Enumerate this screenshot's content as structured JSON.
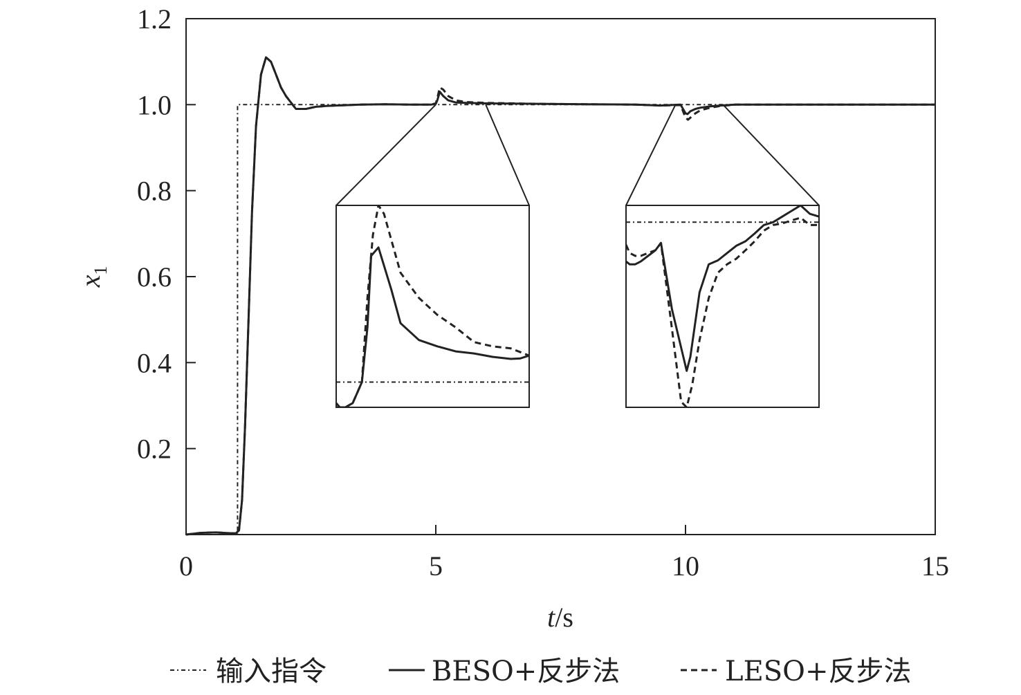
{
  "chart_data": {
    "type": "line",
    "title": "",
    "xlabel_italic": "t",
    "xlabel_unit": "/s",
    "ylabel_main": "x",
    "ylabel_sub": "1",
    "xlim": [
      0,
      15
    ],
    "ylim": [
      0,
      1.2
    ],
    "x_ticks": [
      0,
      5,
      10,
      15
    ],
    "x_tick_labels": [
      "0",
      "5",
      "10",
      "15"
    ],
    "y_ticks": [
      0.2,
      0.4,
      0.6,
      0.8,
      1.0,
      1.2
    ],
    "y_tick_labels": [
      "0.2",
      "0.4",
      "0.6",
      "0.8",
      "1.0",
      "1.2"
    ],
    "grid": false,
    "legend_position": "bottom",
    "series": [
      {
        "name": "输入指令",
        "style": "dashdot",
        "x": [
          0,
          1.03,
          1.03,
          15
        ],
        "y": [
          0,
          0,
          1.0,
          1.0
        ]
      },
      {
        "name": "BESO+反步法",
        "style": "solid",
        "x": [
          0,
          0.3,
          0.6,
          0.9,
          1.0,
          1.06,
          1.12,
          1.18,
          1.25,
          1.32,
          1.4,
          1.5,
          1.6,
          1.7,
          1.8,
          1.9,
          2.0,
          2.2,
          2.4,
          2.6,
          2.8,
          3.0,
          3.5,
          4.0,
          4.5,
          4.9,
          5.0,
          5.03,
          5.08,
          5.15,
          5.25,
          5.4,
          5.6,
          6.0,
          7.0,
          8.0,
          9.0,
          9.5,
          9.9,
          9.95,
          10.0,
          10.04,
          10.1,
          10.2,
          10.3,
          10.5,
          10.7,
          11.0,
          12.0,
          13.0,
          14.0,
          15.0
        ],
        "y": [
          0.0,
          0.004,
          0.005,
          0.003,
          0.003,
          0.01,
          0.08,
          0.25,
          0.5,
          0.75,
          0.95,
          1.07,
          1.11,
          1.1,
          1.07,
          1.04,
          1.02,
          0.99,
          0.99,
          0.995,
          0.997,
          0.998,
          1.0,
          1.001,
          1.0,
          1.0,
          1.002,
          1.01,
          1.03,
          1.02,
          1.01,
          1.005,
          1.004,
          1.003,
          1.002,
          1.001,
          1.0,
          0.998,
          1.0,
          0.99,
          0.98,
          0.978,
          0.985,
          0.99,
          0.993,
          0.996,
          0.998,
          1.0,
          1.0,
          1.0,
          1.0,
          1.0
        ]
      },
      {
        "name": "LESO+反步法",
        "style": "dashed",
        "x": [
          0,
          0.3,
          0.6,
          0.9,
          1.0,
          1.06,
          1.12,
          1.18,
          1.25,
          1.32,
          1.4,
          1.5,
          1.6,
          1.7,
          1.8,
          1.9,
          2.0,
          2.2,
          2.4,
          2.6,
          2.8,
          3.0,
          3.5,
          4.0,
          4.5,
          4.9,
          5.0,
          5.03,
          5.08,
          5.15,
          5.25,
          5.4,
          5.6,
          6.0,
          7.0,
          8.0,
          9.0,
          9.5,
          9.9,
          9.95,
          10.0,
          10.05,
          10.12,
          10.2,
          10.3,
          10.5,
          10.7,
          11.0,
          12.0,
          13.0,
          14.0,
          15.0
        ],
        "y": [
          0.0,
          0.004,
          0.005,
          0.003,
          0.003,
          0.01,
          0.08,
          0.25,
          0.5,
          0.75,
          0.95,
          1.07,
          1.11,
          1.1,
          1.07,
          1.04,
          1.02,
          0.99,
          0.99,
          0.995,
          0.997,
          0.998,
          1.0,
          1.001,
          1.0,
          1.0,
          1.003,
          1.015,
          1.04,
          1.035,
          1.02,
          1.01,
          1.006,
          1.004,
          1.002,
          1.001,
          1.0,
          0.998,
          0.999,
          0.985,
          0.97,
          0.965,
          0.972,
          0.98,
          0.987,
          0.993,
          0.997,
          1.0,
          1.0,
          1.0,
          1.0,
          1.0
        ]
      }
    ],
    "insets": [
      {
        "source_x": [
          5.0,
          6.0
        ],
        "source_y": [
          1.0,
          1.0
        ],
        "xlim": [
          4.95,
          6.0
        ],
        "ylim": [
          0.994,
          1.042
        ],
        "series": [
          {
            "name": "输入指令",
            "x": [
              4.95,
              6.0
            ],
            "y": [
              1.0,
              1.0
            ]
          },
          {
            "name": "BESO+反步法",
            "x": [
              4.95,
              4.96,
              4.98,
              5.0,
              5.04,
              5.07,
              5.09,
              5.12,
              5.14,
              5.18,
              5.25,
              5.3,
              5.4,
              5.5,
              5.6,
              5.7,
              5.8,
              5.9,
              5.95,
              6.0
            ],
            "y": [
              0.994,
              0.994,
              0.994,
              0.994,
              0.995,
              0.998,
              1.0,
              1.013,
              1.03,
              1.032,
              1.022,
              1.014,
              1.01,
              1.0085,
              1.0073,
              1.0068,
              1.006,
              1.0055,
              1.0056,
              1.0063
            ]
          },
          {
            "name": "LESO+反步法",
            "x": [
              4.95,
              4.97,
              5.0,
              5.04,
              5.09,
              5.12,
              5.15,
              5.18,
              5.21,
              5.3,
              5.4,
              5.5,
              5.6,
              5.7,
              5.8,
              5.9,
              6.0
            ],
            "y": [
              0.995,
              0.994,
              0.994,
              0.995,
              1.0,
              1.02,
              1.035,
              1.042,
              1.04,
              1.026,
              1.02,
              1.016,
              1.013,
              1.0095,
              1.0085,
              1.008,
              1.0063
            ]
          }
        ]
      },
      {
        "source_x": [
          9.8,
          10.75
        ],
        "source_y": [
          1.0,
          1.0
        ],
        "xlim": [
          9.8,
          10.85
        ],
        "ylim": [
          0.967,
          1.003
        ],
        "series": [
          {
            "name": "输入指令",
            "x": [
              9.8,
              10.85
            ],
            "y": [
              1.0,
              1.0
            ]
          },
          {
            "name": "BESO+反步法",
            "x": [
              9.8,
              9.82,
              9.85,
              9.88,
              9.92,
              9.96,
              9.99,
              10.05,
              10.13,
              10.15,
              10.2,
              10.25,
              10.3,
              10.35,
              10.4,
              10.45,
              10.5,
              10.55,
              10.6,
              10.65,
              10.7,
              10.75,
              10.8,
              10.85
            ],
            "y": [
              0.993,
              0.9925,
              0.9925,
              0.993,
              0.994,
              0.995,
              0.9963,
              0.9845,
              0.9735,
              0.976,
              0.9875,
              0.9925,
              0.9932,
              0.9945,
              0.9958,
              0.9966,
              0.998,
              0.9995,
              1.0,
              1.001,
              1.002,
              1.003,
              1.0015,
              1.001
            ]
          },
          {
            "name": "LESO+反步法",
            "x": [
              9.8,
              9.82,
              9.85,
              9.88,
              9.92,
              9.96,
              9.99,
              10.05,
              10.1,
              10.13,
              10.16,
              10.2,
              10.25,
              10.3,
              10.35,
              10.4,
              10.45,
              10.5,
              10.55,
              10.6,
              10.65,
              10.7,
              10.75,
              10.8,
              10.85
            ],
            "y": [
              0.996,
              0.9945,
              0.994,
              0.994,
              0.9945,
              0.995,
              0.9963,
              0.981,
              0.968,
              0.967,
              0.971,
              0.979,
              0.9865,
              0.991,
              0.9925,
              0.9935,
              0.995,
              0.9966,
              0.9985,
              0.9995,
              0.9998,
              1.0003,
              1.0008,
              0.9995,
              0.9995
            ]
          }
        ]
      }
    ]
  }
}
